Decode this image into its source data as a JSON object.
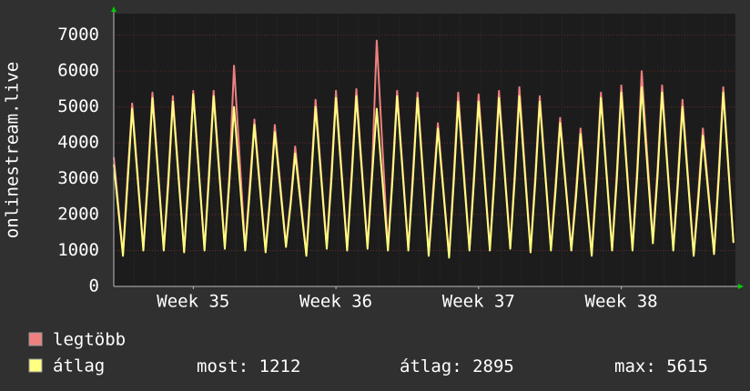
{
  "chart_data": {
    "type": "line",
    "y_label": "onlinestream.live",
    "xlim": [
      0,
      30.5
    ],
    "xticks": [
      {
        "value": 3.9,
        "label": "Week 35"
      },
      {
        "value": 10.9,
        "label": "Week 36"
      },
      {
        "value": 17.9,
        "label": "Week 37"
      },
      {
        "value": 24.9,
        "label": "Week 38"
      }
    ],
    "ylim": [
      0,
      7600
    ],
    "yticks": [
      0,
      1000,
      2000,
      3000,
      4000,
      5000,
      6000,
      7000
    ],
    "grid": true,
    "x": [
      0,
      0.45,
      0.68,
      0.9,
      1.45,
      1.68,
      1.9,
      2.45,
      2.68,
      2.9,
      3.45,
      3.68,
      3.9,
      4.45,
      4.68,
      4.9,
      5.45,
      5.68,
      5.9,
      6.45,
      6.68,
      6.9,
      7.45,
      7.68,
      7.9,
      8.45,
      8.68,
      8.9,
      9.45,
      9.68,
      9.9,
      10.45,
      10.68,
      10.9,
      11.45,
      11.68,
      11.9,
      12.45,
      12.68,
      12.9,
      13.45,
      13.68,
      13.9,
      14.45,
      14.68,
      14.9,
      15.45,
      15.68,
      15.9,
      16.45,
      16.68,
      16.9,
      17.45,
      17.68,
      17.9,
      18.45,
      18.68,
      18.9,
      19.45,
      19.68,
      19.9,
      20.45,
      20.68,
      20.9,
      21.45,
      21.68,
      21.9,
      22.45,
      22.68,
      22.9,
      23.45,
      23.68,
      23.9,
      24.45,
      24.68,
      24.9,
      25.45,
      25.68,
      25.9,
      26.45,
      26.68,
      26.9,
      27.45,
      27.68,
      27.9,
      28.45,
      28.68,
      28.9,
      29.45,
      29.68,
      29.9,
      30.4
    ],
    "series": [
      {
        "name": "legtöbb",
        "color": "#f08080",
        "values": [
          3600,
          900,
          3100,
          5100,
          1050,
          3200,
          5400,
          1050,
          3100,
          5300,
          1000,
          3200,
          5450,
          1050,
          3300,
          5450,
          1100,
          3200,
          6150,
          1050,
          2900,
          4650,
          1000,
          2600,
          4500,
          1150,
          2400,
          3900,
          900,
          3100,
          5200,
          1100,
          3200,
          5450,
          1050,
          3300,
          5500,
          1100,
          3300,
          6850,
          1050,
          3200,
          5450,
          1050,
          3200,
          5400,
          900,
          2800,
          4550,
          850,
          3100,
          5400,
          1050,
          3200,
          5350,
          1050,
          3200,
          5450,
          1100,
          3250,
          5550,
          1000,
          3100,
          5300,
          1050,
          2900,
          4700,
          1050,
          2700,
          4400,
          900,
          3100,
          5400,
          1050,
          3200,
          5600,
          1050,
          3300,
          6000,
          1300,
          3300,
          5600,
          1050,
          3100,
          5200,
          900,
          2600,
          4400,
          950,
          3200,
          5550,
          1250
        ]
      },
      {
        "name": "átlag",
        "color": "#ffff80",
        "values": [
          3400,
          850,
          2900,
          4950,
          1000,
          3000,
          5250,
          1000,
          2900,
          5150,
          950,
          3000,
          5350,
          1000,
          3100,
          5300,
          1050,
          3000,
          5000,
          1000,
          2700,
          4500,
          950,
          2500,
          4300,
          1100,
          2300,
          3700,
          850,
          2900,
          5000,
          1050,
          3000,
          5250,
          1000,
          3100,
          5300,
          1050,
          3100,
          4950,
          1000,
          3000,
          5300,
          1000,
          3000,
          5250,
          850,
          2600,
          4400,
          800,
          2900,
          5150,
          1000,
          3000,
          5150,
          1000,
          3000,
          5250,
          1050,
          3050,
          5300,
          950,
          2900,
          5150,
          1000,
          2700,
          4550,
          1000,
          2500,
          4250,
          850,
          2900,
          5250,
          1000,
          3000,
          5400,
          1000,
          3100,
          5550,
          1200,
          3100,
          5400,
          1000,
          2900,
          5000,
          850,
          2400,
          4200,
          900,
          3000,
          5400,
          1212
        ]
      }
    ],
    "stats": [
      {
        "label": "most:",
        "value": 1212
      },
      {
        "label": "átlag:",
        "value": 2895
      },
      {
        "label": "max:",
        "value": 5615
      }
    ]
  }
}
